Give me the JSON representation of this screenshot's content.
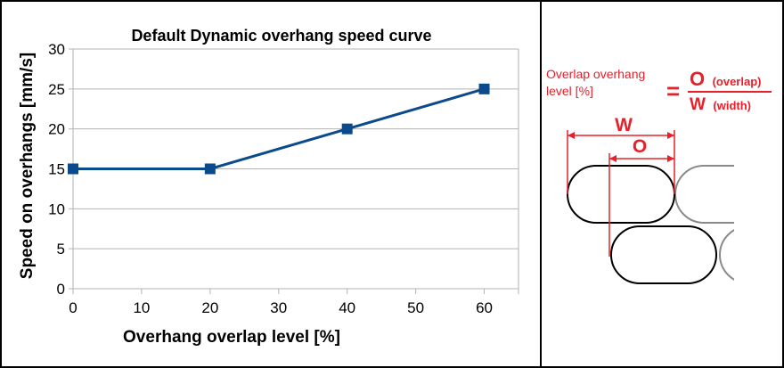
{
  "chart_data": {
    "type": "line",
    "title": "Default Dynamic overhang speed curve",
    "xlabel": "Overhang overlap level [%]",
    "ylabel": "Speed on overhangs [mm/s]",
    "x": [
      0,
      20,
      40,
      60
    ],
    "series": [
      {
        "values": [
          15,
          15,
          20,
          25
        ],
        "color": "#0b4a8b"
      }
    ],
    "xlim": [
      0,
      65
    ],
    "ylim": [
      0,
      30
    ],
    "xticks": [
      0,
      10,
      20,
      30,
      40,
      50,
      60
    ],
    "yticks": [
      0,
      5,
      10,
      15,
      20,
      25,
      30
    ],
    "grid": true,
    "marker": "square"
  },
  "diagram": {
    "formula_left_line1": "Overlap overhang",
    "formula_left_line2": "level [%]",
    "equals": "=",
    "numerator_letter": "O",
    "numerator_sub": "(overlap)",
    "denominator_letter": "W",
    "denominator_sub": "(width)",
    "label_w": "W",
    "label_o": "O",
    "accent_color": "#e8202a"
  }
}
